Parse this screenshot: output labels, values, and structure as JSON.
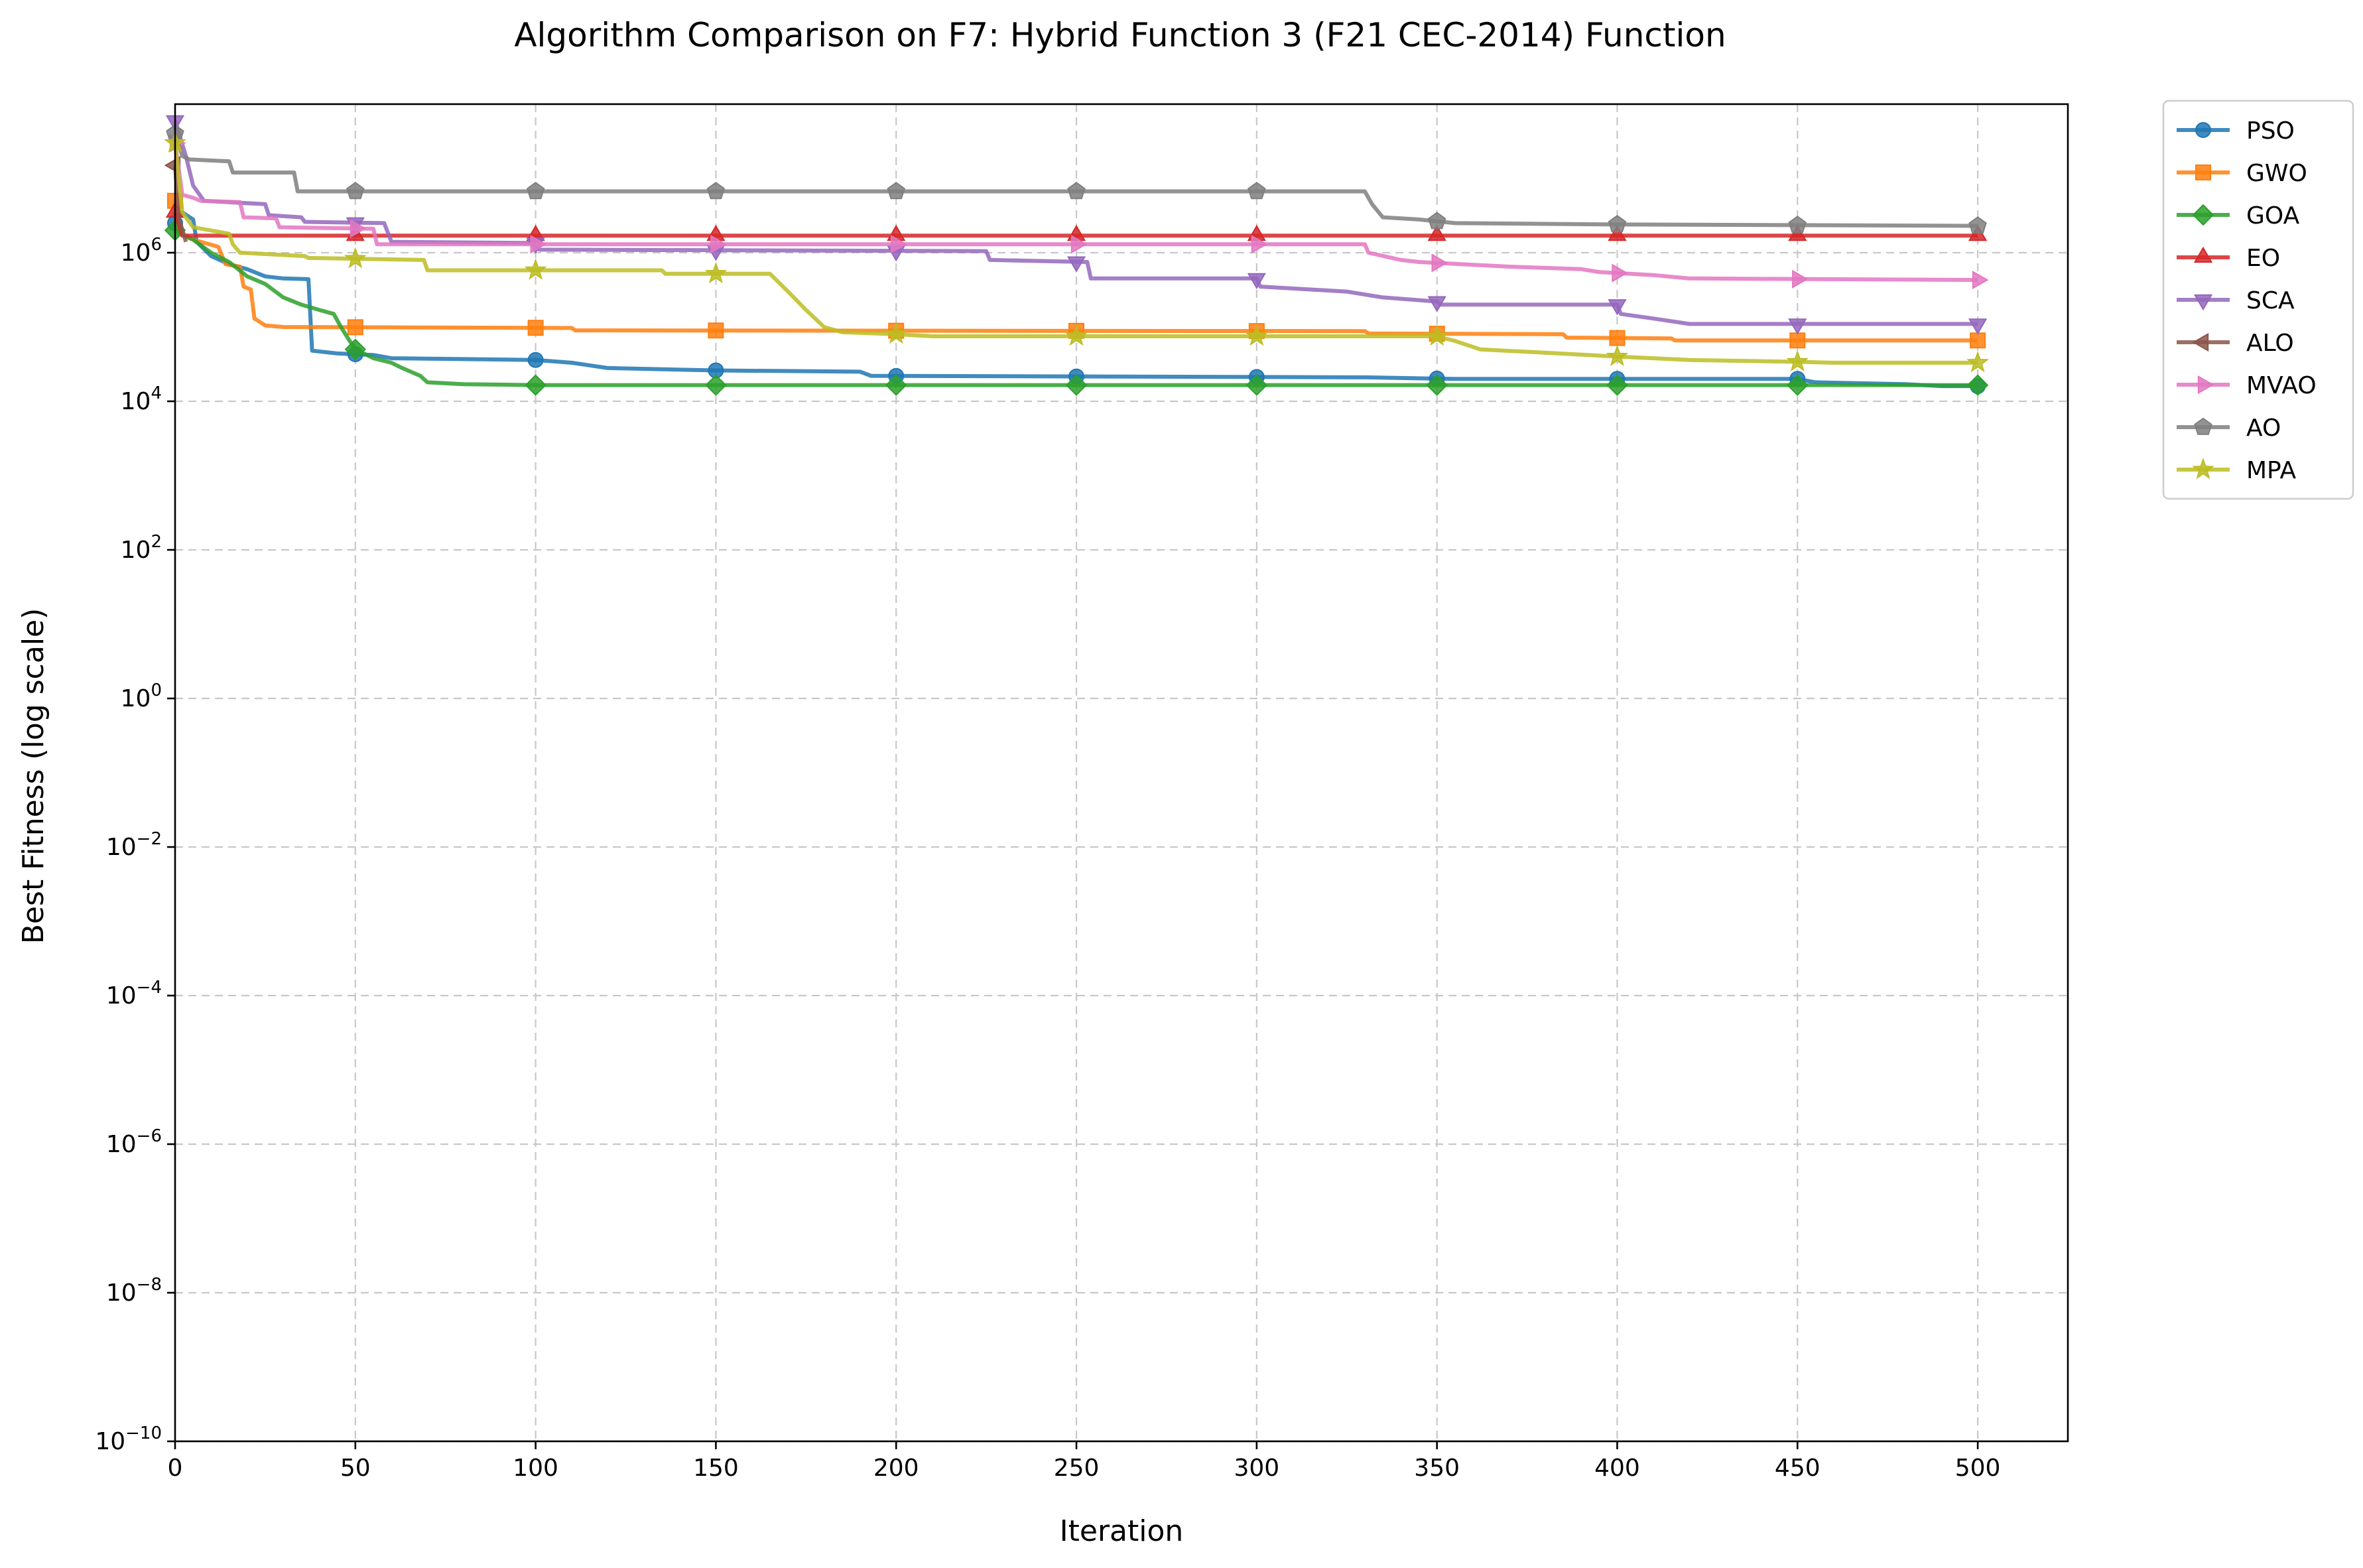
{
  "chart_data": {
    "type": "line",
    "title": "Algorithm Comparison on F7: Hybrid Function 3 (F21 CEC-2014) Function",
    "xlabel": "Iteration",
    "ylabel": "Best Fitness (log scale)",
    "yscale": "log",
    "xlim": [
      0,
      525
    ],
    "ylim": [
      1e-10,
      100000000.0
    ],
    "xticks": [
      0,
      50,
      100,
      150,
      200,
      250,
      300,
      350,
      400,
      450,
      500
    ],
    "ytick_exponents": [
      -10,
      -8,
      -6,
      -4,
      -2,
      0,
      2,
      4,
      6
    ],
    "grid": true,
    "legend_position": "outside-top-right",
    "marker_every": 50,
    "series": [
      {
        "name": "PSO",
        "color": "#1f77b4",
        "marker": "circle",
        "points": [
          [
            0,
            2500000
          ],
          [
            2,
            3500000
          ],
          [
            5,
            2800000
          ],
          [
            6,
            1400000
          ],
          [
            10,
            900000
          ],
          [
            15,
            700000
          ],
          [
            20,
            600000
          ],
          [
            25,
            480000
          ],
          [
            30,
            450000
          ],
          [
            37,
            440000
          ],
          [
            38,
            48000
          ],
          [
            45,
            44000
          ],
          [
            55,
            42000
          ],
          [
            60,
            38000
          ],
          [
            100,
            36000
          ],
          [
            110,
            33000
          ],
          [
            120,
            28000
          ],
          [
            150,
            26000
          ],
          [
            190,
            25000
          ],
          [
            193,
            22000
          ],
          [
            330,
            21000
          ],
          [
            355,
            20000
          ],
          [
            450,
            20000
          ],
          [
            455,
            18000
          ],
          [
            480,
            17000
          ],
          [
            490,
            16000
          ],
          [
            500,
            16000
          ]
        ]
      },
      {
        "name": "GWO",
        "color": "#ff7f0e",
        "marker": "square",
        "points": [
          [
            0,
            5000000
          ],
          [
            1,
            1800000
          ],
          [
            5,
            1500000
          ],
          [
            12,
            1200000
          ],
          [
            14,
            700000
          ],
          [
            18,
            650000
          ],
          [
            19,
            350000
          ],
          [
            21,
            320000
          ],
          [
            22,
            130000
          ],
          [
            25,
            105000
          ],
          [
            30,
            100000
          ],
          [
            110,
            97000
          ],
          [
            111,
            90000
          ],
          [
            330,
            88000
          ],
          [
            331,
            82000
          ],
          [
            385,
            80000
          ],
          [
            386,
            72000
          ],
          [
            415,
            70000
          ],
          [
            416,
            66000
          ],
          [
            500,
            66000
          ]
        ]
      },
      {
        "name": "GOA",
        "color": "#2ca02c",
        "marker": "diamond",
        "points": [
          [
            0,
            2000000
          ],
          [
            5,
            1500000
          ],
          [
            10,
            1000000
          ],
          [
            15,
            750000
          ],
          [
            20,
            480000
          ],
          [
            25,
            380000
          ],
          [
            30,
            250000
          ],
          [
            35,
            200000
          ],
          [
            40,
            170000
          ],
          [
            44,
            150000
          ],
          [
            46,
            100000
          ],
          [
            48,
            70000
          ],
          [
            50,
            50000
          ],
          [
            55,
            38000
          ],
          [
            60,
            33000
          ],
          [
            63,
            28000
          ],
          [
            68,
            22000
          ],
          [
            70,
            18000
          ],
          [
            80,
            17000
          ],
          [
            100,
            16500
          ],
          [
            500,
            16500
          ]
        ]
      },
      {
        "name": "EO",
        "color": "#d62728",
        "marker": "triangle-up",
        "points": [
          [
            0,
            3500000
          ],
          [
            2,
            1700000
          ],
          [
            500,
            1700000
          ]
        ]
      },
      {
        "name": "SCA",
        "color": "#9467bd",
        "marker": "triangle-down",
        "points": [
          [
            0,
            60000000
          ],
          [
            3,
            20000000
          ],
          [
            5,
            8000000
          ],
          [
            8,
            5000000
          ],
          [
            25,
            4500000
          ],
          [
            26,
            3200000
          ],
          [
            35,
            3000000
          ],
          [
            36,
            2600000
          ],
          [
            58,
            2500000
          ],
          [
            60,
            1400000
          ],
          [
            100,
            1350000
          ],
          [
            101,
            1100000
          ],
          [
            225,
            1050000
          ],
          [
            226,
            800000
          ],
          [
            253,
            750000
          ],
          [
            254,
            450000
          ],
          [
            300,
            450000
          ],
          [
            301,
            350000
          ],
          [
            325,
            300000
          ],
          [
            335,
            250000
          ],
          [
            350,
            220000
          ],
          [
            351,
            200000
          ],
          [
            400,
            200000
          ],
          [
            401,
            150000
          ],
          [
            410,
            130000
          ],
          [
            420,
            110000
          ],
          [
            500,
            110000
          ]
        ]
      },
      {
        "name": "ALO",
        "color": "#8c564b",
        "marker": "triangle-left",
        "points": [
          [
            0,
            15000000
          ],
          [
            1,
            3000000
          ],
          [
            3,
            1400000
          ]
        ]
      },
      {
        "name": "MVAO",
        "color": "#e377c2",
        "marker": "triangle-right",
        "points": [
          [
            0,
            30000000
          ],
          [
            2,
            6000000
          ],
          [
            5,
            5500000
          ],
          [
            7,
            5000000
          ],
          [
            18,
            4800000
          ],
          [
            19,
            3000000
          ],
          [
            28,
            2900000
          ],
          [
            29,
            2200000
          ],
          [
            55,
            2100000
          ],
          [
            56,
            1300000
          ],
          [
            330,
            1300000
          ],
          [
            331,
            1000000
          ],
          [
            340,
            800000
          ],
          [
            345,
            750000
          ],
          [
            370,
            650000
          ],
          [
            390,
            600000
          ],
          [
            395,
            550000
          ],
          [
            410,
            500000
          ],
          [
            420,
            450000
          ],
          [
            500,
            430000
          ]
        ]
      },
      {
        "name": "AO",
        "color": "#7f7f7f",
        "marker": "pentagon",
        "points": [
          [
            0,
            40000000
          ],
          [
            2,
            20000000
          ],
          [
            4,
            18000000
          ],
          [
            15,
            17000000
          ],
          [
            16,
            12000000
          ],
          [
            33,
            12000000
          ],
          [
            34,
            6700000
          ],
          [
            330,
            6700000
          ],
          [
            332,
            4500000
          ],
          [
            335,
            3000000
          ],
          [
            345,
            2800000
          ],
          [
            355,
            2500000
          ],
          [
            400,
            2400000
          ],
          [
            500,
            2300000
          ]
        ]
      },
      {
        "name": "MPA",
        "color": "#bcbd22",
        "marker": "star",
        "points": [
          [
            0,
            30000000
          ],
          [
            2,
            3500000
          ],
          [
            5,
            2200000
          ],
          [
            15,
            1800000
          ],
          [
            16,
            1300000
          ],
          [
            18,
            1000000
          ],
          [
            36,
            900000
          ],
          [
            37,
            850000
          ],
          [
            69,
            800000
          ],
          [
            70,
            580000
          ],
          [
            135,
            580000
          ],
          [
            136,
            520000
          ],
          [
            165,
            520000
          ],
          [
            170,
            300000
          ],
          [
            175,
            170000
          ],
          [
            180,
            100000
          ],
          [
            185,
            85000
          ],
          [
            200,
            80000
          ],
          [
            210,
            75000
          ],
          [
            350,
            75000
          ],
          [
            355,
            65000
          ],
          [
            362,
            50000
          ],
          [
            380,
            45000
          ],
          [
            400,
            40000
          ],
          [
            420,
            36000
          ],
          [
            450,
            34000
          ],
          [
            460,
            33000
          ],
          [
            500,
            33000
          ]
        ]
      }
    ]
  }
}
